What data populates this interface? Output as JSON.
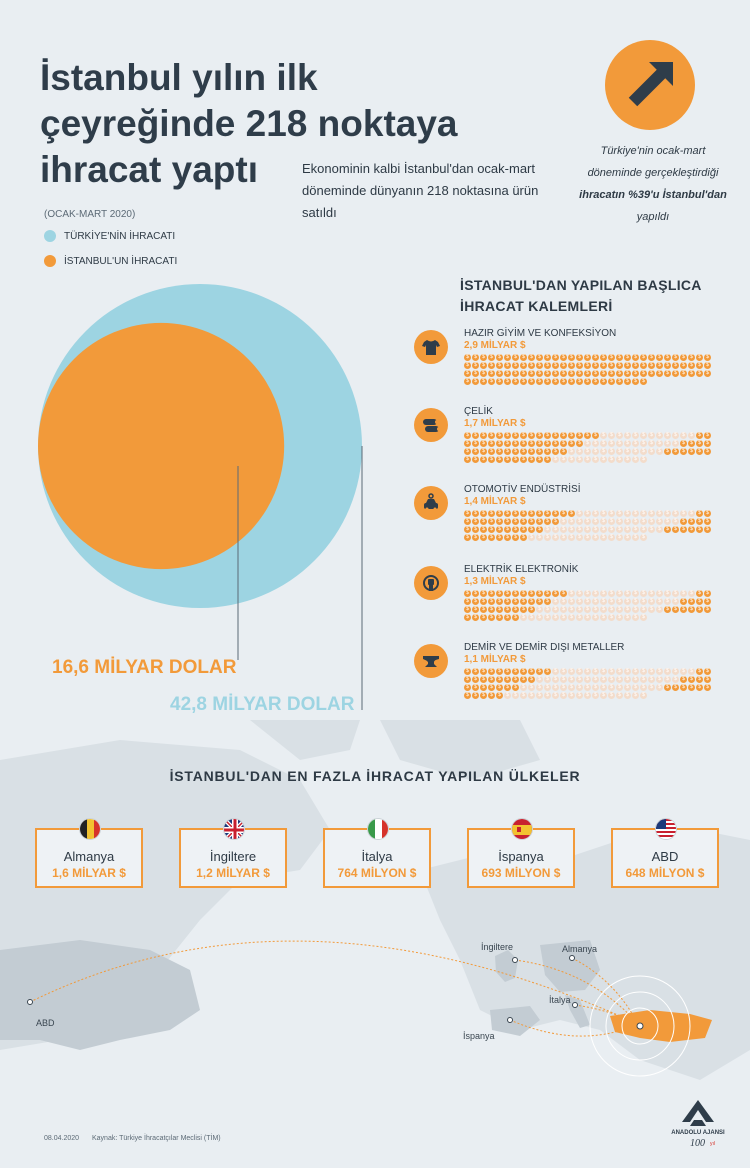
{
  "header": {
    "title_line1": "İstanbul yılın ilk",
    "title_line2": "çeyreğinde 218 noktaya",
    "title_line3": "ihracat yaptı",
    "subtitle": "Ekonominin kalbi İstanbul'dan ocak-mart döneminde dünyanın 218 noktasına ürün satıldı",
    "period": "(OCAK-MART 2020)"
  },
  "legend": [
    {
      "label": "TÜRKİYE'NİN İHRACATI",
      "color": "#9dd4e2"
    },
    {
      "label": "İSTANBUL'UN İHRACATI",
      "color": "#f29a3a"
    }
  ],
  "badge": {
    "icon": "arrow-up-right-icon",
    "note_pre": "Türkiye'nin ocak-mart döneminde gerçekleştirdiği",
    "note_bold": "ihracatın %39'u İstanbul'dan",
    "note_post": "yapıldı"
  },
  "circles": {
    "istanbul_label": "16,6 MİLYAR DOLAR",
    "turkey_label": "42,8 MİLYAR DOLAR",
    "istanbul_value": 16.6,
    "turkey_value": 42.8
  },
  "items": {
    "title": "İSTANBUL'DAN YAPILAN BAŞLICA İHRACAT KALEMLERİ",
    "list": [
      {
        "name": "HAZIR GİYİM VE KONFEKSİYON",
        "value": "2,9 MİLYAR $",
        "icon": "tshirt-icon",
        "filled": 100
      },
      {
        "name": "ÇELİK",
        "value": "1,7 MİLYAR $",
        "icon": "steel-pipes-icon",
        "filled": 59
      },
      {
        "name": "OTOMOTİV ENDÜSTRİSİ",
        "value": "1,4 MİLYAR $",
        "icon": "car-wrench-icon",
        "filled": 48
      },
      {
        "name": "ELEKTRİK ELEKTRONİK",
        "value": "1,3 MİLYAR $",
        "icon": "plug-icon",
        "filled": 45
      },
      {
        "name": "DEMİR VE DEMİR DIŞI METALLER",
        "value": "1,1 MİLYAR $",
        "icon": "anvil-icon",
        "filled": 38
      }
    ],
    "coin_symbol": "$"
  },
  "countries": {
    "title": "İSTANBUL'DAN EN FAZLA İHRACAT YAPILAN ÜLKELER",
    "list": [
      {
        "name": "Almanya",
        "value": "1,6 MİLYAR $",
        "flag": "germany-flag-icon"
      },
      {
        "name": "İngiltere",
        "value": "1,2 MİLYAR $",
        "flag": "uk-flag-icon"
      },
      {
        "name": "İtalya",
        "value": "764 MİLYON $",
        "flag": "italy-flag-icon"
      },
      {
        "name": "İspanya",
        "value": "693 MİLYON $",
        "flag": "spain-flag-icon"
      },
      {
        "name": "ABD",
        "value": "648 MİLYON $",
        "flag": "usa-flag-icon"
      }
    ]
  },
  "map_labels": {
    "abd": "ABD",
    "ingiltere": "İngiltere",
    "almanya": "Almanya",
    "italya": "İtalya",
    "ispanya": "İspanya"
  },
  "footer": {
    "date": "08.04.2020",
    "source": "Kaynak: Türkiye İhracatçılar Meclisi (TİM)",
    "logo_text": "ANADOLU AJANSI",
    "logo_anniv": "100"
  },
  "colors": {
    "accent": "#f29a3a",
    "turkey": "#9dd4e2",
    "coin_off": "#f3dccb",
    "text": "#2e3a45"
  }
}
